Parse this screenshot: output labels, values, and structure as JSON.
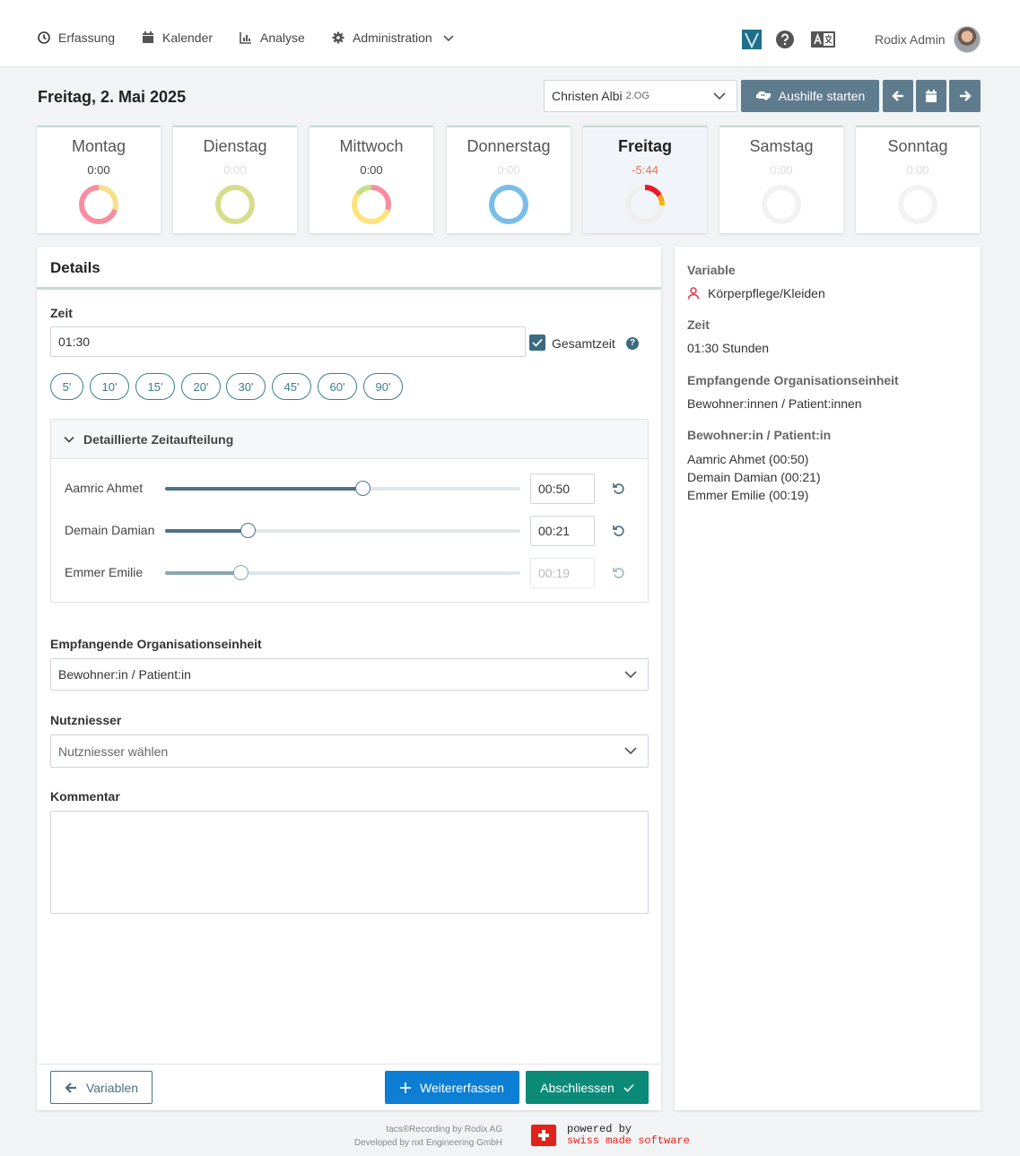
{
  "nav": {
    "items": [
      {
        "label": "Erfassung",
        "icon": "clock-icon"
      },
      {
        "label": "Kalender",
        "icon": "calendar-icon"
      },
      {
        "label": "Analyse",
        "icon": "chart-icon"
      },
      {
        "label": "Administration",
        "icon": "gear-icon"
      }
    ],
    "user_name": "Rodix Admin"
  },
  "header": {
    "date_title": "Freitag, 2. Mai 2025",
    "person": "Christen Albi",
    "person_sub": "2.OG",
    "substitute_label": "Aushilfe starten"
  },
  "days": [
    {
      "name": "Montag",
      "time": "0:00",
      "active": false,
      "segments": [
        {
          "color": "#f7e08a",
          "fraction": 0.3
        },
        {
          "color": "#f78ea0",
          "fraction": 0.7
        }
      ]
    },
    {
      "name": "Dienstag",
      "time": "0:00",
      "active": false,
      "segments": [
        {
          "color": "#d7dd8a",
          "fraction": 1
        }
      ]
    },
    {
      "name": "Mittwoch",
      "time": "0:00",
      "active": false,
      "segments": [
        {
          "color": "#f78ea0",
          "fraction": 0.3
        },
        {
          "color": "#fde47a",
          "fraction": 0.55
        },
        {
          "color": "#c7dd86",
          "fraction": 0.15
        }
      ]
    },
    {
      "name": "Donnerstag",
      "time": "0:00",
      "active": false,
      "segments": [
        {
          "color": "#7bbde8",
          "fraction": 1
        }
      ]
    },
    {
      "name": "Freitag",
      "time": "-5:44",
      "active": true,
      "segments": [
        {
          "color": "#e8192c",
          "fraction": 0.16
        },
        {
          "color": "#f5a21c",
          "fraction": 0.06
        },
        {
          "color": "#e6c200",
          "fraction": 0.04
        },
        {
          "color": "#eeeeee",
          "fraction": 0.74
        }
      ]
    },
    {
      "name": "Samstag",
      "time": "0:00",
      "active": false,
      "segments": [
        {
          "color": "#f2f2f2",
          "fraction": 1
        }
      ]
    },
    {
      "name": "Sonntag",
      "time": "0:00",
      "active": false,
      "segments": [
        {
          "color": "#f2f2f2",
          "fraction": 1
        }
      ]
    }
  ],
  "details": {
    "title": "Details",
    "zeit_label": "Zeit",
    "zeit_value": "01:30",
    "gesamtzeit_label": "Gesamtzeit",
    "gesamtzeit_checked": true,
    "help_glyph": "?",
    "quick_times": [
      "5'",
      "10'",
      "15'",
      "20'",
      "30'",
      "45'",
      "60'",
      "90'"
    ],
    "breakdown_title": "Detaillierte Zeitaufteilung",
    "breakdown": [
      {
        "name": "Aamric Ahmet",
        "value": "00:50",
        "fraction": 0.5556,
        "enabled": true
      },
      {
        "name": "Demain Damian",
        "value": "00:21",
        "fraction": 0.2333,
        "enabled": true
      },
      {
        "name": "Emmer Emilie",
        "value": "00:19",
        "fraction": 0.2111,
        "enabled": false
      }
    ],
    "org_label": "Empfangende Organisationseinheit",
    "org_value": "Bewohner:in / Patient:in",
    "beneficiary_label": "Nutzniesser",
    "beneficiary_placeholder": "Nutzniesser wählen",
    "comment_label": "Kommentar",
    "comment_value": "",
    "back_label": "Variablen",
    "continue_label": "Weitererfassen",
    "finish_label": "Abschliessen"
  },
  "summary": {
    "variable_label": "Variable",
    "variable_value": "Körperpflege/Kleiden",
    "zeit_label": "Zeit",
    "zeit_value": "01:30 Stunden",
    "org_label": "Empfangende Organisationseinheit",
    "org_value": "Bewohner:innen / Patient:innen",
    "residents_label": "Bewohner:in / Patient:in",
    "residents": [
      "Aamric Ahmet (00:50)",
      "Demain Damian (00:21)",
      "Emmer Emilie (00:19)"
    ]
  },
  "footer": {
    "line1": "tacs®Recording by Rodix AG",
    "line2": "Developed by nxt Engineering GmbH",
    "powered_by": "powered by",
    "swiss": "swiss made software"
  }
}
